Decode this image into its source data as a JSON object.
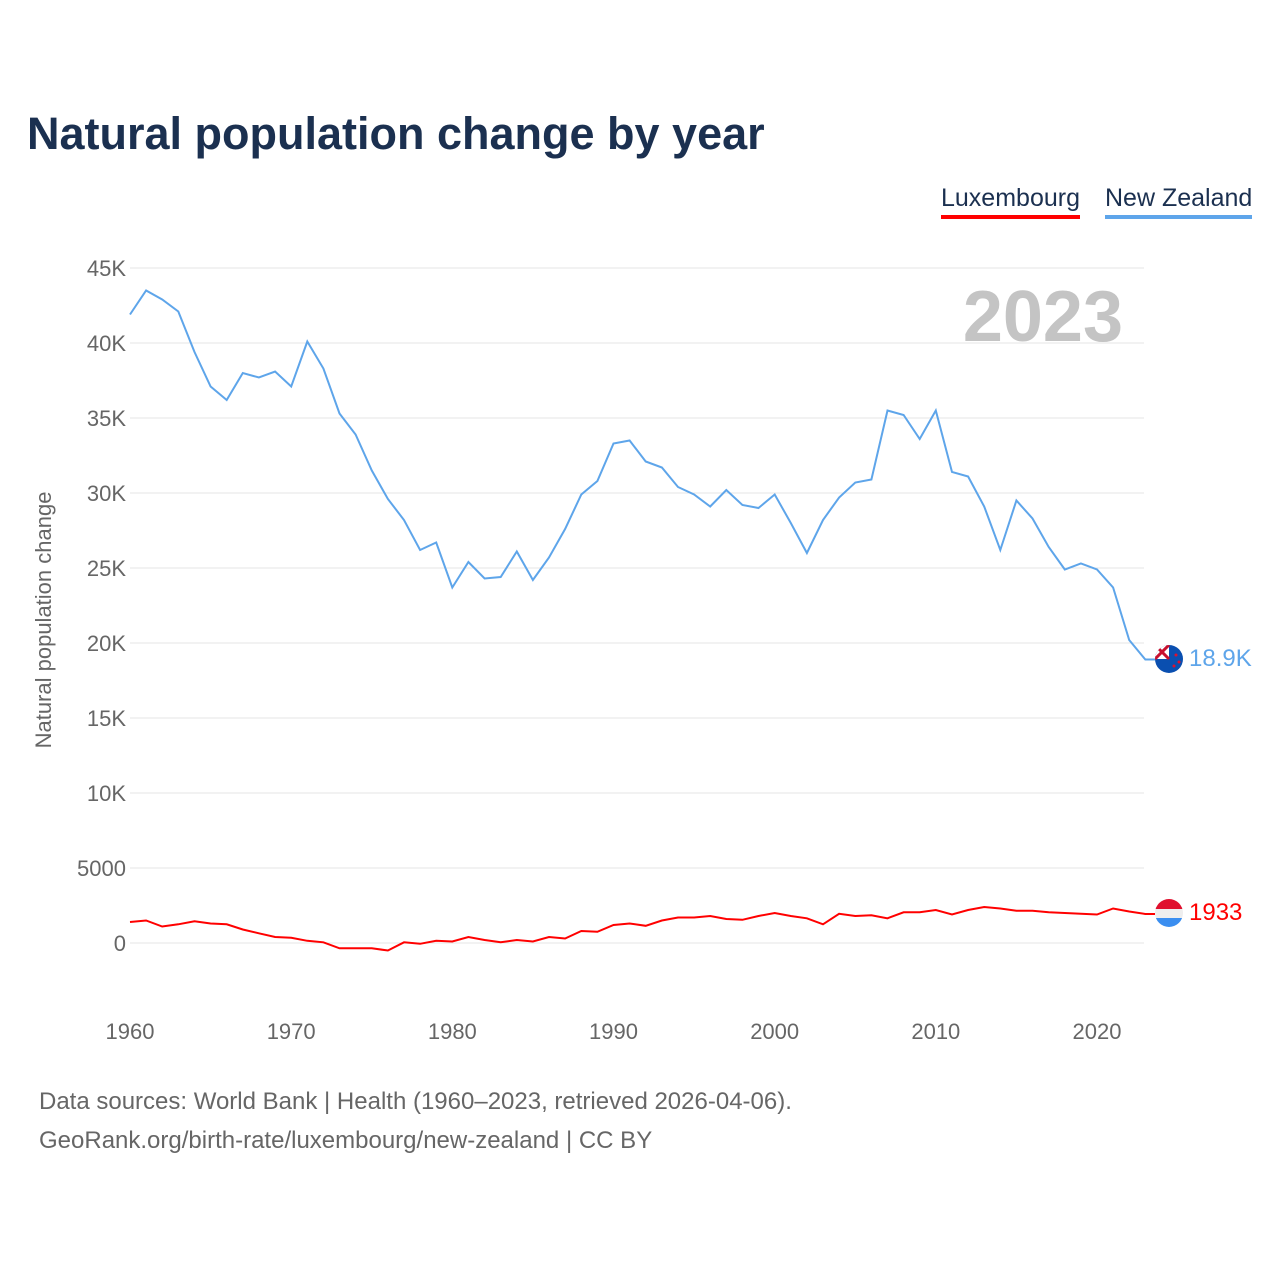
{
  "chart_data": {
    "type": "line",
    "title": "Natural population change by year",
    "ylabel": "Natural population change",
    "xlabel": "",
    "xlim": [
      1960,
      2023
    ],
    "ylim": [
      -2000,
      45000
    ],
    "grid": true,
    "legend_position": "top-right",
    "year_label": "2023",
    "y_ticks": [
      0,
      5000,
      10000,
      15000,
      20000,
      25000,
      30000,
      35000,
      40000,
      45000
    ],
    "y_tick_labels": [
      "0",
      "5000",
      "10K",
      "15K",
      "20K",
      "25K",
      "30K",
      "35K",
      "40K",
      "45K"
    ],
    "x_ticks": [
      1960,
      1970,
      1980,
      1990,
      2000,
      2010,
      2020
    ],
    "x_tick_labels": [
      "1960",
      "1970",
      "1980",
      "1990",
      "2000",
      "2010",
      "2020"
    ],
    "series": [
      {
        "name": "Luxembourg",
        "color": "#ff0000",
        "end_label": "1933",
        "values": [
          1400,
          1500,
          1100,
          1250,
          1450,
          1300,
          1250,
          900,
          650,
          400,
          350,
          150,
          50,
          -350,
          -350,
          -350,
          -500,
          50,
          -50,
          150,
          100,
          400,
          200,
          50,
          200,
          100,
          400,
          300,
          800,
          750,
          1200,
          1300,
          1150,
          1500,
          1700,
          1700,
          1800,
          1600,
          1550,
          1800,
          2000,
          1800,
          1650,
          1250,
          1950,
          1800,
          1850,
          1650,
          2050,
          2050,
          2200,
          1900,
          2200,
          2400,
          2300,
          2150,
          2150,
          2050,
          2000,
          1950,
          1900,
          2300,
          2100,
          1933
        ]
      },
      {
        "name": "New Zealand",
        "color": "#5ea5ea",
        "end_label": "18.9K",
        "values": [
          41900,
          43500,
          42900,
          42100,
          39400,
          37100,
          36200,
          38000,
          37700,
          38100,
          37100,
          40100,
          38300,
          35300,
          33900,
          31500,
          29600,
          28200,
          26200,
          26700,
          23700,
          25400,
          24300,
          24400,
          26100,
          24200,
          25700,
          27600,
          29900,
          30800,
          33300,
          33500,
          32100,
          31700,
          30400,
          29900,
          29100,
          30200,
          29200,
          29000,
          29900,
          28000,
          26000,
          28200,
          29700,
          30700,
          30900,
          35500,
          35200,
          33600,
          35500,
          31400,
          31100,
          29100,
          26200,
          29500,
          28300,
          26400,
          24900,
          25300,
          24900,
          23700,
          20200,
          18900
        ]
      }
    ]
  },
  "footer": {
    "line1": "Data sources: World Bank | Health (1960–2023, retrieved 2026-04-06).",
    "line2": "GeoRank.org/birth-rate/luxembourg/new-zealand | CC BY"
  }
}
